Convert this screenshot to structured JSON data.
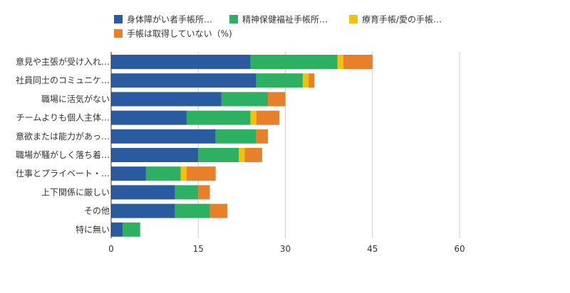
{
  "chart_data": {
    "type": "bar",
    "orientation": "horizontal",
    "stacked": true,
    "title": "",
    "xlabel": "",
    "ylabel": "",
    "xlim": [
      0,
      75
    ],
    "ticks": [
      0,
      15,
      30,
      45,
      60
    ],
    "grid": true,
    "legend_position": "top",
    "categories": [
      "意見や主張が受け入れ…",
      "社員同士のコミュニケ…",
      "職場に活気がない",
      "チームよりも個人主体…",
      "意欲または能力があっ…",
      "職場が騒がしく落ち着…",
      "仕事とプライベート・…",
      "上下関係に厳しい",
      "その他",
      "特に無い"
    ],
    "series": [
      {
        "name": "身体障がい者手帳所…",
        "color": "#2a5aa0",
        "values": [
          24,
          25,
          19,
          13,
          18,
          15,
          6,
          11,
          11,
          2
        ]
      },
      {
        "name": "精神保健福祉手帳所…",
        "color": "#2eb062",
        "values": [
          15,
          8,
          8,
          11,
          7,
          7,
          6,
          4,
          6,
          3
        ]
      },
      {
        "name": "療育手帳/愛の手帳…",
        "color": "#f2c10f",
        "values": [
          1,
          1,
          0,
          1,
          0,
          1,
          1,
          0,
          0,
          0
        ]
      },
      {
        "name": "手帳は取得していない（%)",
        "color": "#e8802a",
        "values": [
          5,
          1,
          3,
          4,
          2,
          3,
          5,
          2,
          3,
          0
        ]
      }
    ]
  }
}
